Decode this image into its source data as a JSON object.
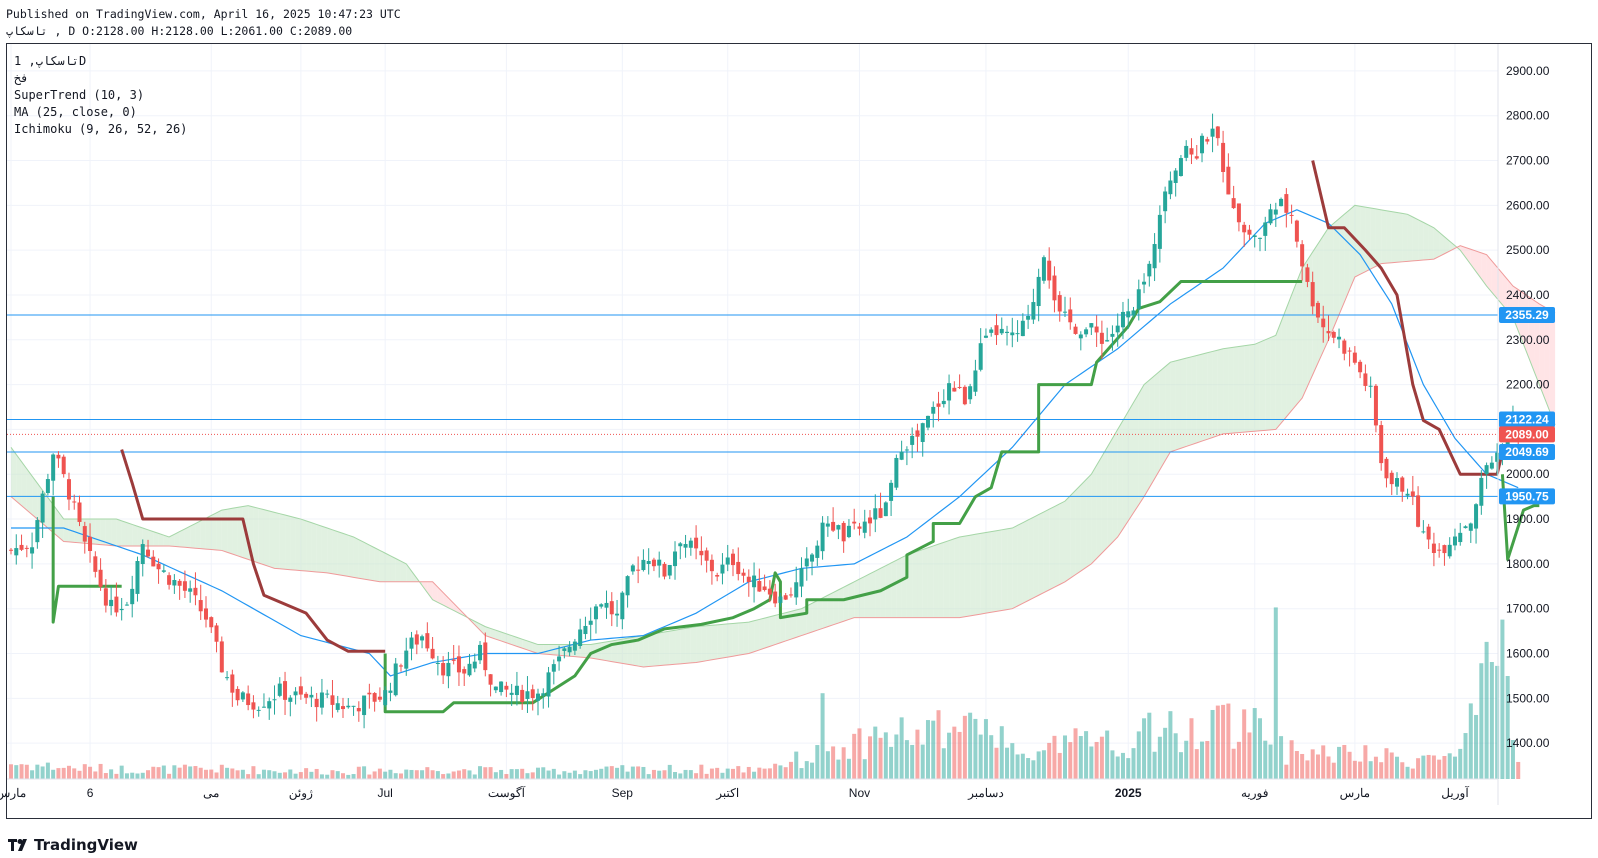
{
  "header": {
    "published": "Published on TradingView.com, April 16, 2025 10:47:23 UTC",
    "ohlc": "تاسکاپ , D O:2128.00 H:2128.00 L:2061.00 C:2089.00"
  },
  "legend": {
    "symbol": "تاسکاپ, 1D",
    "exchange": "فخ",
    "supertrend": "SuperTrend (10, 3)",
    "ma": "MA (25, close, 0)",
    "ichimoku": "Ichimoku (9, 26, 52, 26)"
  },
  "brand": "TradingView",
  "colors": {
    "up": "#26a69a",
    "down": "#ef5350",
    "supertrend_up": "#43a047",
    "supertrend_down": "#9c3b3b",
    "ma": "#2196f3",
    "hline": "#2196f3",
    "cloud_bull": "#c8e6c9",
    "cloud_bear": "#ffcdd2",
    "price_label": "#ef5350"
  },
  "chart_data": {
    "type": "candlestick",
    "ylim": [
      1320,
      2960
    ],
    "y_ticks": [
      1400,
      1500,
      1600,
      1700,
      1800,
      1900,
      2000,
      2100,
      2200,
      2300,
      2400,
      2500,
      2600,
      2700,
      2800,
      2900
    ],
    "y_tick_labels": [
      "1400.00",
      "1500.00",
      "1600.00",
      "1700.00",
      "1800.00",
      "1900.00",
      "2000.00",
      "2100.00",
      "2200.00",
      "2300.00",
      "2400.00",
      "2500.00",
      "2600.00",
      "2700.00",
      "2800.00",
      "2900.00"
    ],
    "x_labels": [
      {
        "i": 0,
        "label": "مارس"
      },
      {
        "i": 15,
        "label": "6"
      },
      {
        "i": 38,
        "label": "می"
      },
      {
        "i": 55,
        "label": "ژوئن"
      },
      {
        "i": 71,
        "label": "Jul"
      },
      {
        "i": 94,
        "label": "آگوست"
      },
      {
        "i": 116,
        "label": "Sep"
      },
      {
        "i": 136,
        "label": "اکتبر"
      },
      {
        "i": 161,
        "label": "Nov"
      },
      {
        "i": 185,
        "label": "دسامبر"
      },
      {
        "i": 212,
        "label": "2025"
      },
      {
        "i": 236,
        "label": "فوریه"
      },
      {
        "i": 255,
        "label": "مارس"
      },
      {
        "i": 274,
        "label": "آوریل"
      }
    ],
    "horizontal_lines": [
      2355.29,
      2122.24,
      2049.69,
      1950.75
    ],
    "price_labels": [
      {
        "value": 2355.29,
        "text": "2355.29",
        "color": "#2196f3"
      },
      {
        "value": 2122.24,
        "text": "2122.24",
        "color": "#2196f3"
      },
      {
        "value": 2089.0,
        "text": "2089.00",
        "color": "#ef5350"
      },
      {
        "value": 2049.69,
        "text": "2049.69",
        "color": "#2196f3"
      },
      {
        "value": 1950.75,
        "text": "1950.75",
        "color": "#2196f3"
      }
    ],
    "last_close": 2089.0,
    "close_anchors": [
      [
        0,
        1830
      ],
      [
        4,
        1850
      ],
      [
        8,
        2050
      ],
      [
        11,
        1960
      ],
      [
        14,
        1840
      ],
      [
        16,
        1780
      ],
      [
        19,
        1700
      ],
      [
        22,
        1720
      ],
      [
        25,
        1850
      ],
      [
        28,
        1790
      ],
      [
        31,
        1760
      ],
      [
        34,
        1730
      ],
      [
        37,
        1680
      ],
      [
        40,
        1570
      ],
      [
        43,
        1500
      ],
      [
        47,
        1490
      ],
      [
        51,
        1515
      ],
      [
        55,
        1500
      ],
      [
        60,
        1495
      ],
      [
        64,
        1480
      ],
      [
        68,
        1495
      ],
      [
        71,
        1510
      ],
      [
        75,
        1610
      ],
      [
        78,
        1640
      ],
      [
        82,
        1570
      ],
      [
        86,
        1560
      ],
      [
        89,
        1600
      ],
      [
        92,
        1520
      ],
      [
        96,
        1510
      ],
      [
        100,
        1515
      ],
      [
        104,
        1580
      ],
      [
        108,
        1660
      ],
      [
        112,
        1720
      ],
      [
        115,
        1680
      ],
      [
        118,
        1790
      ],
      [
        121,
        1820
      ],
      [
        124,
        1780
      ],
      [
        127,
        1860
      ],
      [
        131,
        1810
      ],
      [
        134,
        1780
      ],
      [
        137,
        1810
      ],
      [
        140,
        1760
      ],
      [
        143,
        1750
      ],
      [
        146,
        1720
      ],
      [
        149,
        1750
      ],
      [
        152,
        1820
      ],
      [
        155,
        1900
      ],
      [
        158,
        1860
      ],
      [
        161,
        1880
      ],
      [
        163,
        1900
      ],
      [
        166,
        1920
      ],
      [
        169,
        2070
      ],
      [
        172,
        2080
      ],
      [
        175,
        2140
      ],
      [
        178,
        2200
      ],
      [
        181,
        2170
      ],
      [
        184,
        2280
      ],
      [
        187,
        2320
      ],
      [
        190,
        2300
      ],
      [
        193,
        2340
      ],
      [
        196,
        2500
      ],
      [
        199,
        2350
      ],
      [
        202,
        2330
      ],
      [
        205,
        2320
      ],
      [
        208,
        2300
      ],
      [
        211,
        2350
      ],
      [
        213,
        2360
      ],
      [
        216,
        2460
      ],
      [
        219,
        2650
      ],
      [
        222,
        2710
      ],
      [
        225,
        2720
      ],
      [
        228,
        2780
      ],
      [
        231,
        2640
      ],
      [
        234,
        2540
      ],
      [
        237,
        2530
      ],
      [
        240,
        2610
      ],
      [
        243,
        2580
      ],
      [
        246,
        2420
      ],
      [
        249,
        2330
      ],
      [
        252,
        2300
      ],
      [
        255,
        2250
      ],
      [
        258,
        2180
      ],
      [
        260,
        2030
      ],
      [
        262,
        1980
      ],
      [
        265,
        1970
      ],
      [
        268,
        1860
      ],
      [
        271,
        1830
      ],
      [
        274,
        1870
      ],
      [
        277,
        1900
      ],
      [
        280,
        2020
      ],
      [
        283,
        2050
      ],
      [
        285,
        2120
      ],
      [
        286,
        2089
      ]
    ],
    "volume_anchors": [
      [
        0,
        0.08
      ],
      [
        10,
        0.06
      ],
      [
        20,
        0.05
      ],
      [
        40,
        0.05
      ],
      [
        60,
        0.04
      ],
      [
        80,
        0.05
      ],
      [
        100,
        0.04
      ],
      [
        120,
        0.05
      ],
      [
        140,
        0.05
      ],
      [
        150,
        0.1
      ],
      [
        165,
        0.22
      ],
      [
        180,
        0.25
      ],
      [
        195,
        0.18
      ],
      [
        212,
        0.2
      ],
      [
        226,
        0.28
      ],
      [
        236,
        0.3
      ],
      [
        240,
        0.15
      ],
      [
        255,
        0.12
      ],
      [
        265,
        0.1
      ],
      [
        275,
        0.12
      ],
      [
        281,
        0.55
      ],
      [
        283,
        0.58
      ],
      [
        286,
        0.1
      ]
    ],
    "volume_spikes": [
      [
        240,
        0.88
      ],
      [
        281,
        0.6
      ],
      [
        282,
        0.58
      ],
      [
        182,
        0.34
      ],
      [
        154,
        0.44
      ],
      [
        230,
        0.38
      ],
      [
        216,
        0.34
      ]
    ],
    "ma_anchors": [
      [
        0,
        1880
      ],
      [
        10,
        1880
      ],
      [
        25,
        1820
      ],
      [
        40,
        1740
      ],
      [
        55,
        1640
      ],
      [
        68,
        1600
      ],
      [
        72,
        1550
      ],
      [
        80,
        1580
      ],
      [
        90,
        1600
      ],
      [
        100,
        1600
      ],
      [
        110,
        1630
      ],
      [
        120,
        1640
      ],
      [
        130,
        1690
      ],
      [
        140,
        1760
      ],
      [
        150,
        1790
      ],
      [
        160,
        1800
      ],
      [
        170,
        1860
      ],
      [
        180,
        1950
      ],
      [
        190,
        2060
      ],
      [
        200,
        2200
      ],
      [
        210,
        2280
      ],
      [
        220,
        2380
      ],
      [
        230,
        2460
      ],
      [
        238,
        2560
      ],
      [
        244,
        2590
      ],
      [
        250,
        2560
      ],
      [
        256,
        2490
      ],
      [
        262,
        2380
      ],
      [
        268,
        2200
      ],
      [
        274,
        2080
      ],
      [
        280,
        2000
      ],
      [
        286,
        1970
      ]
    ],
    "supertrend": [
      {
        "dir": "up",
        "pts": [
          [
            8,
            1950
          ],
          [
            8,
            1670
          ],
          [
            9,
            1750
          ],
          [
            21,
            1750
          ]
        ]
      },
      {
        "dir": "down",
        "pts": [
          [
            21,
            2055
          ],
          [
            23,
            1980
          ],
          [
            25,
            1900
          ],
          [
            44,
            1900
          ],
          [
            46,
            1800
          ],
          [
            48,
            1730
          ],
          [
            56,
            1690
          ],
          [
            60,
            1630
          ],
          [
            64,
            1605
          ],
          [
            71,
            1605
          ]
        ]
      },
      {
        "dir": "up",
        "pts": [
          [
            71,
            1600
          ],
          [
            71,
            1470
          ],
          [
            82,
            1470
          ],
          [
            84,
            1490
          ],
          [
            95,
            1490
          ],
          [
            99,
            1490
          ],
          [
            103,
            1520
          ],
          [
            107,
            1550
          ],
          [
            110,
            1600
          ],
          [
            114,
            1620
          ],
          [
            119,
            1630
          ],
          [
            124,
            1655
          ],
          [
            131,
            1665
          ],
          [
            137,
            1680
          ],
          [
            141,
            1700
          ],
          [
            144,
            1720
          ],
          [
            145,
            1780
          ],
          [
            146,
            1760
          ],
          [
            146,
            1680
          ],
          [
            151,
            1690
          ],
          [
            151,
            1720
          ],
          [
            158,
            1720
          ],
          [
            165,
            1740
          ],
          [
            170,
            1770
          ],
          [
            170,
            1820
          ],
          [
            175,
            1850
          ],
          [
            175,
            1890
          ],
          [
            180,
            1890
          ],
          [
            183,
            1950
          ],
          [
            186,
            1970
          ],
          [
            188,
            2050
          ],
          [
            195,
            2050
          ],
          [
            195,
            2200
          ],
          [
            205,
            2200
          ],
          [
            206,
            2250
          ],
          [
            212,
            2330
          ],
          [
            214,
            2370
          ],
          [
            218,
            2385
          ],
          [
            222,
            2430
          ],
          [
            245,
            2430
          ]
        ]
      },
      {
        "dir": "down",
        "pts": [
          [
            247,
            2700
          ],
          [
            250,
            2550
          ],
          [
            253,
            2550
          ],
          [
            257,
            2500
          ],
          [
            260,
            2460
          ],
          [
            263,
            2400
          ],
          [
            266,
            2200
          ],
          [
            268,
            2120
          ],
          [
            271,
            2100
          ],
          [
            273,
            2050
          ],
          [
            275,
            2000
          ],
          [
            282,
            2000
          ],
          [
            283,
            2050
          ]
        ]
      },
      {
        "dir": "up",
        "pts": [
          [
            283,
            2000
          ],
          [
            284,
            1810
          ],
          [
            287,
            1920
          ],
          [
            289,
            1930
          ],
          [
            290,
            1930
          ]
        ]
      }
    ],
    "span_a_anchors": [
      [
        0,
        2060
      ],
      [
        10,
        1900
      ],
      [
        20,
        1900
      ],
      [
        30,
        1860
      ],
      [
        40,
        1920
      ],
      [
        45,
        1930
      ],
      [
        55,
        1900
      ],
      [
        65,
        1860
      ],
      [
        75,
        1800
      ],
      [
        80,
        1720
      ],
      [
        90,
        1660
      ],
      [
        100,
        1620
      ],
      [
        110,
        1620
      ],
      [
        120,
        1640
      ],
      [
        130,
        1660
      ],
      [
        140,
        1670
      ],
      [
        150,
        1700
      ],
      [
        160,
        1760
      ],
      [
        170,
        1820
      ],
      [
        180,
        1860
      ],
      [
        190,
        1880
      ],
      [
        200,
        1940
      ],
      [
        205,
        2000
      ],
      [
        210,
        2100
      ],
      [
        215,
        2200
      ],
      [
        220,
        2250
      ],
      [
        230,
        2280
      ],
      [
        236,
        2290
      ],
      [
        240,
        2310
      ],
      [
        245,
        2460
      ],
      [
        250,
        2550
      ],
      [
        255,
        2600
      ],
      [
        260,
        2590
      ],
      [
        265,
        2580
      ],
      [
        270,
        2550
      ],
      [
        275,
        2500
      ],
      [
        280,
        2420
      ],
      [
        285,
        2350
      ],
      [
        290,
        2200
      ],
      [
        293,
        2110
      ]
    ],
    "span_b_anchors": [
      [
        0,
        1950
      ],
      [
        10,
        1850
      ],
      [
        20,
        1840
      ],
      [
        30,
        1840
      ],
      [
        40,
        1830
      ],
      [
        50,
        1790
      ],
      [
        60,
        1780
      ],
      [
        70,
        1760
      ],
      [
        80,
        1760
      ],
      [
        90,
        1640
      ],
      [
        100,
        1600
      ],
      [
        110,
        1590
      ],
      [
        120,
        1570
      ],
      [
        130,
        1580
      ],
      [
        140,
        1600
      ],
      [
        150,
        1640
      ],
      [
        160,
        1680
      ],
      [
        170,
        1680
      ],
      [
        180,
        1680
      ],
      [
        190,
        1700
      ],
      [
        200,
        1760
      ],
      [
        205,
        1800
      ],
      [
        210,
        1860
      ],
      [
        215,
        1950
      ],
      [
        220,
        2050
      ],
      [
        230,
        2090
      ],
      [
        240,
        2100
      ],
      [
        245,
        2170
      ],
      [
        250,
        2300
      ],
      [
        255,
        2440
      ],
      [
        260,
        2470
      ],
      [
        270,
        2480
      ],
      [
        275,
        2510
      ],
      [
        280,
        2490
      ],
      [
        285,
        2420
      ],
      [
        290,
        2380
      ],
      [
        293,
        2360
      ]
    ]
  }
}
